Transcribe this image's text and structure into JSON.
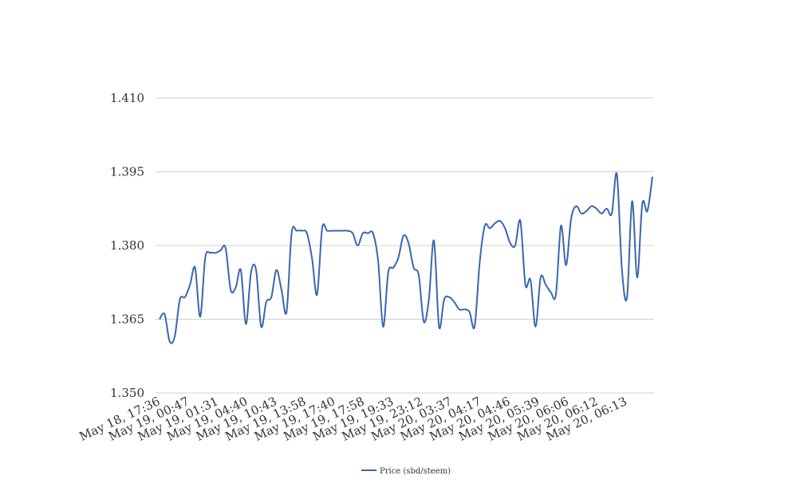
{
  "chart_data": {
    "type": "line",
    "title": "",
    "xlabel": "",
    "ylabel": "",
    "ylim": [
      1.35,
      1.41
    ],
    "y_ticks": [
      "1.350",
      "1.365",
      "1.380",
      "1.395",
      "1.410"
    ],
    "y_tick_values": [
      1.35,
      1.365,
      1.38,
      1.395,
      1.41
    ],
    "x_tick_labels": [
      "May 18, 17:36",
      "May 19, 00:47",
      "May 19, 01:31",
      "May 19, 04:40",
      "May 19, 10:43",
      "May 19, 13:58",
      "May 19, 17:40",
      "May 19, 17:58",
      "May 19, 19:33",
      "May 19, 23:12",
      "May 20, 03:37",
      "May 20, 04:17",
      "May 20, 04:46",
      "May 20, 05:39",
      "May 20, 06:06",
      "May 20, 06:12",
      "May 20, 06:13"
    ],
    "grid": true,
    "legend_position": "bottom",
    "series": [
      {
        "name": "Price (sbd/steem)",
        "color": "#3a66b0",
        "values": [
          1.365,
          1.366,
          1.3605,
          1.3615,
          1.369,
          1.3695,
          1.372,
          1.3755,
          1.3655,
          1.3775,
          1.3785,
          1.3785,
          1.379,
          1.3795,
          1.371,
          1.3715,
          1.375,
          1.364,
          1.3745,
          1.375,
          1.3635,
          1.3685,
          1.3695,
          1.375,
          1.371,
          1.3665,
          1.3825,
          1.383,
          1.383,
          1.3825,
          1.3775,
          1.37,
          1.3835,
          1.383,
          1.383,
          1.383,
          1.383,
          1.383,
          1.3825,
          1.38,
          1.3825,
          1.3825,
          1.3825,
          1.377,
          1.3635,
          1.3745,
          1.3755,
          1.3775,
          1.382,
          1.3805,
          1.3755,
          1.374,
          1.3645,
          1.369,
          1.381,
          1.3635,
          1.369,
          1.3695,
          1.3685,
          1.367,
          1.367,
          1.3665,
          1.3635,
          1.3765,
          1.384,
          1.3835,
          1.3845,
          1.385,
          1.3835,
          1.3805,
          1.38,
          1.385,
          1.372,
          1.373,
          1.3635,
          1.3735,
          1.372,
          1.3705,
          1.37,
          1.384,
          1.376,
          1.3855,
          1.388,
          1.3865,
          1.387,
          1.388,
          1.3875,
          1.3865,
          1.3875,
          1.3865,
          1.3945,
          1.375,
          1.3695,
          1.389,
          1.3735,
          1.3885,
          1.387,
          1.394
        ]
      }
    ]
  }
}
